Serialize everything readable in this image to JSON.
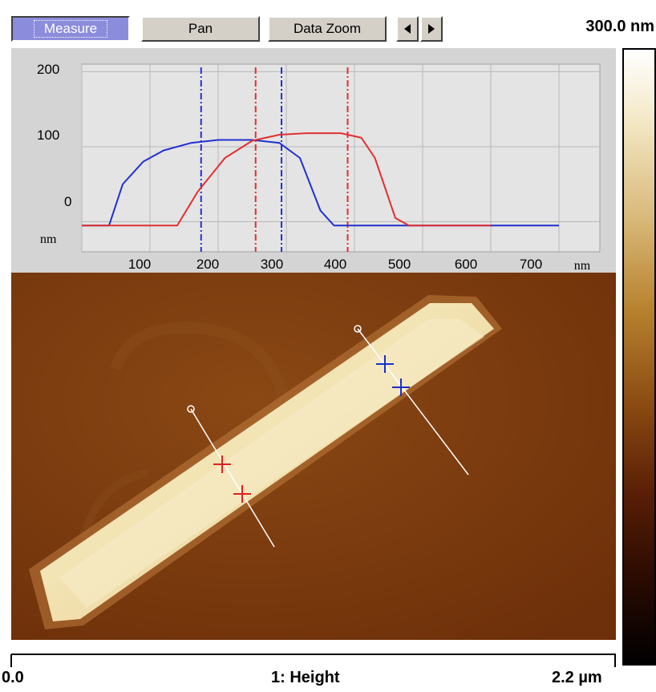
{
  "toolbar": {
    "measure_label": "Measure",
    "pan_label": "Pan",
    "data_zoom_label": "Data Zoom",
    "prev_icon": "triangle-left-icon",
    "next_icon": "triangle-right-icon",
    "scale_max": "300.0 nm"
  },
  "profile": {
    "y_ticks": [
      "200",
      "100",
      "0"
    ],
    "y_unit": "nm",
    "x_ticks": [
      "100",
      "200",
      "300",
      "400",
      "500",
      "600",
      "700"
    ],
    "x_unit": "nm",
    "colors": {
      "red": "#e03030",
      "blue": "#2030d0",
      "background": "#d4d4d4"
    }
  },
  "chart_data": {
    "type": "line",
    "title": "",
    "xlabel": "nm",
    "ylabel": "nm",
    "xlim": [
      0,
      760
    ],
    "ylim": [
      -40,
      210
    ],
    "grid": true,
    "series": [
      {
        "color": "#2030d0",
        "x": [
          0,
          40,
          60,
          90,
          120,
          160,
          200,
          250,
          290,
          320,
          350,
          370,
          700
        ],
        "y": [
          -5,
          -5,
          50,
          80,
          95,
          105,
          109,
          109,
          105,
          85,
          15,
          -5,
          -5
        ]
      },
      {
        "color": "#e03030",
        "x": [
          0,
          140,
          170,
          210,
          250,
          290,
          330,
          380,
          410,
          430,
          460,
          480,
          600
        ],
        "y": [
          -5,
          -5,
          40,
          85,
          108,
          116,
          118,
          118,
          112,
          85,
          5,
          -5,
          -5
        ]
      }
    ],
    "cursors": [
      {
        "color": "#2030d0",
        "x": 175
      },
      {
        "color": "#e03030",
        "x": 255
      },
      {
        "color": "#2030d0",
        "x": 293
      },
      {
        "color": "#e03030",
        "x": 390
      }
    ]
  },
  "image_panel": {
    "colors": {
      "substrate": "#7a3a0a",
      "crystal_edge": "#c88a3c",
      "crystal_core": "#f3e2b0",
      "crystal_top": "#ffffff"
    }
  },
  "bottom_axis": {
    "left_label": "0.0",
    "center_label": "1: Height",
    "right_label": "2.2 µm"
  }
}
